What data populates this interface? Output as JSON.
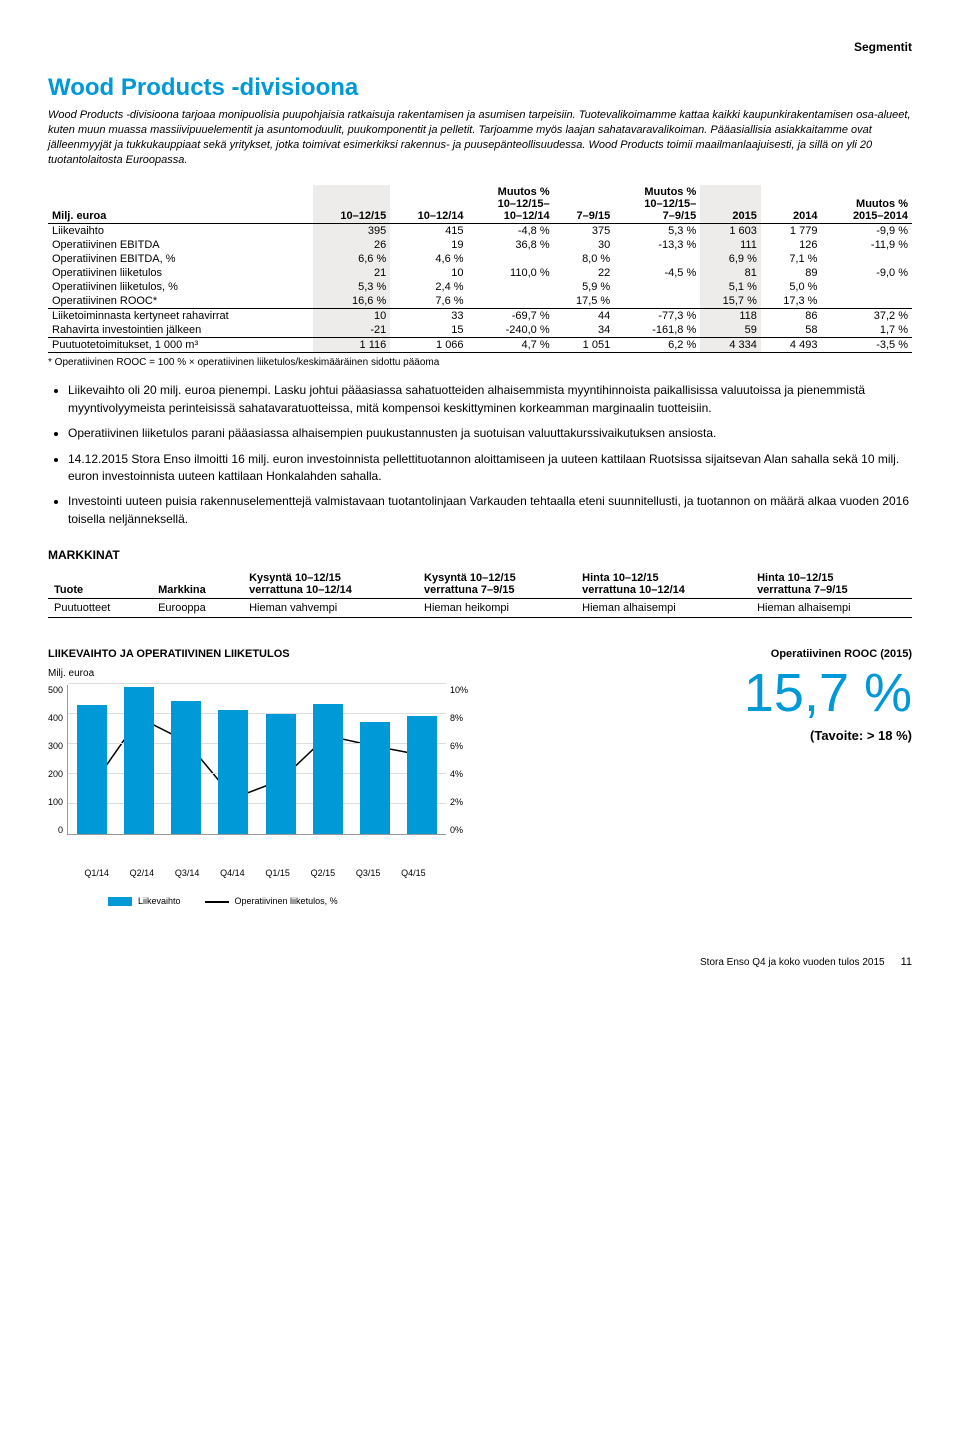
{
  "header": {
    "segment_label": "Segmentit"
  },
  "title": "Wood Products -divisioona",
  "intro": "Wood Products -divisioona tarjoaa monipuolisia puupohjaisia ratkaisuja rakentamisen ja asumisen tarpeisiin. Tuotevalikoimamme kattaa kaikki kaupunkirakentamisen osa-alueet, kuten muun muassa massiivipuuelementit ja asuntomoduulit, puukomponentit ja pelletit. Tarjoamme myös laajan sahatavaravalikoiman. Pääasiallisia asiakkaitamme ovat jälleenmyyjät ja tukkukauppiaat sekä yritykset, jotka toimivat esimerkiksi rakennus- ja puusepänteollisuudessa. Wood Products toimii maailmanlaajuisesti, ja sillä on yli 20 tuotantolaitosta Euroopassa.",
  "table": {
    "headers": {
      "c0": "Milj. euroa",
      "c1": "10–12/15",
      "c2": "10–12/14",
      "c3": "Muutos %\n10–12/15–\n10–12/14",
      "c4": "7–9/15",
      "c5": "Muutos %\n10–12/15–\n7–9/15",
      "c6": "2015",
      "c7": "2014",
      "c8": "Muutos %\n2015–2014"
    },
    "rows": [
      {
        "label": "Liikevaihto",
        "v": [
          "395",
          "415",
          "-4,8 %",
          "375",
          "5,3 %",
          "1 603",
          "1 779",
          "-9,9 %"
        ]
      },
      {
        "label": "Operatiivinen EBITDA",
        "v": [
          "26",
          "19",
          "36,8 %",
          "30",
          "-13,3 %",
          "111",
          "126",
          "-11,9 %"
        ]
      },
      {
        "label": "Operatiivinen EBITDA, %",
        "v": [
          "6,6 %",
          "4,6 %",
          "",
          "8,0 %",
          "",
          "6,9 %",
          "7,1 %",
          ""
        ]
      },
      {
        "label": "Operatiivinen liiketulos",
        "v": [
          "21",
          "10",
          "110,0 %",
          "22",
          "-4,5 %",
          "81",
          "89",
          "-9,0 %"
        ]
      },
      {
        "label": "Operatiivinen liiketulos, %",
        "v": [
          "5,3 %",
          "2,4 %",
          "",
          "5,9 %",
          "",
          "5,1 %",
          "5,0 %",
          ""
        ]
      },
      {
        "label": "Operatiivinen ROOC*",
        "v": [
          "16,6 %",
          "7,6 %",
          "",
          "17,5 %",
          "",
          "15,7 %",
          "17,3 %",
          ""
        ]
      },
      {
        "label": "Liiketoiminnasta kertyneet rahavirrat",
        "v": [
          "10",
          "33",
          "-69,7 %",
          "44",
          "-77,3 %",
          "118",
          "86",
          "37,2 %"
        ]
      },
      {
        "label": "Rahavirta investointien jälkeen",
        "v": [
          "-21",
          "15",
          "-240,0 %",
          "34",
          "-161,8 %",
          "59",
          "58",
          "1,7 %"
        ]
      },
      {
        "label": "Puutuotetoimitukset, 1 000 m³",
        "v": [
          "1 116",
          "1 066",
          "4,7 %",
          "1 051",
          "6,2 %",
          "4 334",
          "4 493",
          "-3,5 %"
        ]
      }
    ]
  },
  "footnote": "* Operatiivinen ROOC = 100 % × operatiivinen liiketulos/keskimääräinen sidottu pääoma",
  "bullets": [
    "Liikevaihto oli 20 milj. euroa pienempi. Lasku johtui pääasiassa sahatuotteiden alhaisemmista myyntihinnoista paikallisissa valuutoissa ja pienemmistä myyntivolyymeista perinteisissä sahatavaratuotteissa, mitä kompensoi keskittyminen korkeamman marginaalin tuotteisiin.",
    "Operatiivinen liiketulos parani pääasiassa alhaisempien puukustannusten ja suotuisan valuuttakurssivaikutuksen ansiosta.",
    "14.12.2015 Stora Enso ilmoitti 16 milj. euron investoinnista pellettituotannon aloittamiseen ja uuteen kattilaan Ruotsissa sijaitsevan Alan sahalla sekä 10 milj. euron investoinnista uuteen kattilaan Honkalahden sahalla.",
    "Investointi uuteen puisia rakennuselementtejä valmistavaan tuotantolinjaan Varkauden tehtaalla eteni suunnitellusti, ja tuotannon on määrä alkaa vuoden 2016 toisella neljänneksellä."
  ],
  "markets": {
    "heading": "MARKKINAT",
    "headers": {
      "product": "Tuote",
      "market": "Markkina",
      "h1": "Kysyntä 10–12/15\nverrattuna 10–12/14",
      "h2": "Kysyntä 10–12/15\nverrattuna 7–9/15",
      "h3": "Hinta 10–12/15\nverrattuna 10–12/14",
      "h4": "Hinta 10–12/15\nverrattuna 7–9/15"
    },
    "row": {
      "product": "Puutuotteet",
      "market": "Eurooppa",
      "v1": "Hieman vahvempi",
      "v2": "Hieman heikompi",
      "v3": "Hieman alhaisempi",
      "v4": "Hieman alhaisempi"
    }
  },
  "chart": {
    "title": "LIIKEVAIHTO JA OPERATIIVINEN LIIKETULOS",
    "unit": "Milj. euroa",
    "categories": [
      "Q1/14",
      "Q2/14",
      "Q3/14",
      "Q4/14",
      "Q1/15",
      "Q2/15",
      "Q3/15",
      "Q4/15"
    ],
    "bar_values": [
      430,
      490,
      445,
      415,
      400,
      435,
      375,
      395
    ],
    "line_values_pct": [
      3.3,
      7.8,
      6.2,
      2.4,
      3.6,
      6.6,
      5.9,
      5.3
    ],
    "y_left": {
      "max": 500,
      "ticks": [
        "500",
        "400",
        "300",
        "200",
        "100",
        "0"
      ]
    },
    "y_right": {
      "max": 10,
      "ticks": [
        "10%",
        "8%",
        "6%",
        "4%",
        "2%",
        "0%"
      ]
    },
    "bar_color": "#0099d8",
    "line_color": "#000000",
    "grid_color": "#dddddd",
    "legend_bar": "Liikevaihto",
    "legend_line": "Operatiivinen liiketulos, %"
  },
  "kpi": {
    "title": "Operatiivinen ROOC (2015)",
    "value": "15,7 %",
    "target": "(Tavoite: > 18 %)"
  },
  "footer": {
    "text": "Stora Enso Q4 ja koko vuoden tulos 2015",
    "page": "11"
  }
}
